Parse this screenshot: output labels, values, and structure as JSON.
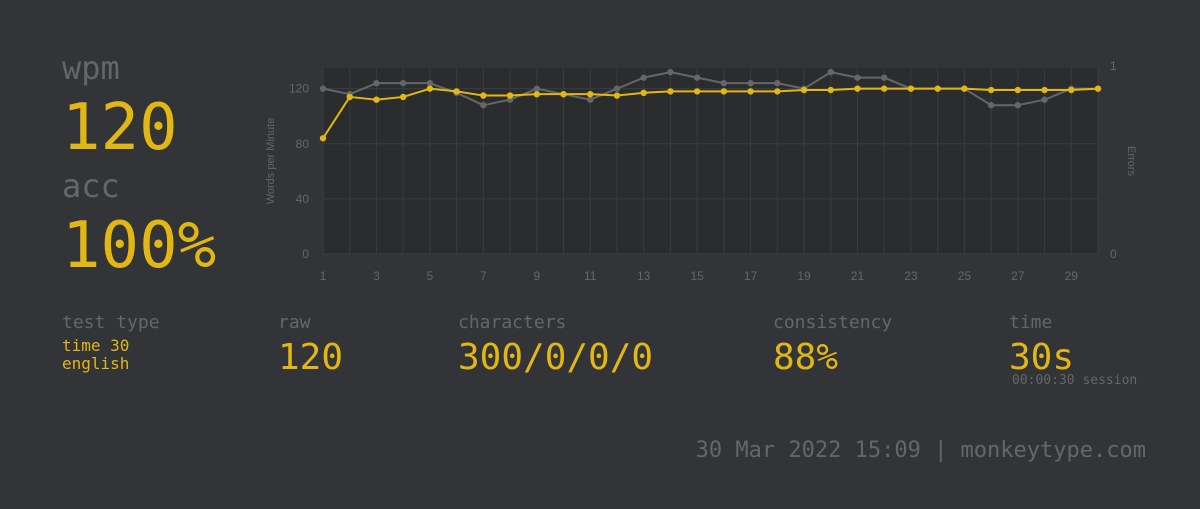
{
  "summary": {
    "wpm_label": "wpm",
    "wpm_value": "120",
    "acc_label": "acc",
    "acc_value": "100%"
  },
  "stats": {
    "test_type": {
      "label": "test type",
      "mode": "time 30",
      "language": "english"
    },
    "raw": {
      "label": "raw",
      "value": "120"
    },
    "characters": {
      "label": "characters",
      "value": "300/0/0/0"
    },
    "consistency": {
      "label": "consistency",
      "value": "88%"
    },
    "time": {
      "label": "time",
      "value": "30s",
      "session": "00:00:30 session"
    }
  },
  "footer": {
    "text": "30 Mar 2022 15:09 | monkeytype.com"
  },
  "colors": {
    "background": "#323437",
    "accent": "#e2b714",
    "sub": "#646669",
    "raw_line": "#646669"
  },
  "chart_data": {
    "type": "line",
    "xlabel": "",
    "ylabel": "Words per Minute",
    "y2label": "Errors",
    "x": [
      1,
      2,
      3,
      4,
      5,
      6,
      7,
      8,
      9,
      10,
      11,
      12,
      13,
      14,
      15,
      16,
      17,
      18,
      19,
      20,
      21,
      22,
      23,
      24,
      25,
      26,
      27,
      28,
      29,
      30
    ],
    "xticks": [
      1,
      3,
      5,
      7,
      9,
      11,
      13,
      15,
      17,
      19,
      21,
      23,
      25,
      27,
      29
    ],
    "yticks": [
      0,
      40,
      80,
      120
    ],
    "y2ticks": [
      0,
      1
    ],
    "ylim": [
      0,
      135
    ],
    "y2lim": [
      0,
      1
    ],
    "grid": true,
    "series": [
      {
        "values": [
          120,
          116,
          124,
          124,
          124,
          117,
          108,
          112,
          120,
          116,
          112,
          120,
          128,
          132,
          128,
          124,
          124,
          124,
          120,
          132,
          128,
          128,
          120,
          120,
          120,
          108,
          108,
          112,
          120,
          120
        ]
      },
      {
        "values": [
          84,
          114,
          112,
          114,
          120,
          118,
          115,
          115,
          116,
          116,
          116,
          115,
          117,
          118,
          118,
          118,
          118,
          118,
          119,
          119,
          120,
          120,
          120,
          120,
          120,
          119,
          119,
          119,
          119,
          120
        ]
      }
    ]
  }
}
